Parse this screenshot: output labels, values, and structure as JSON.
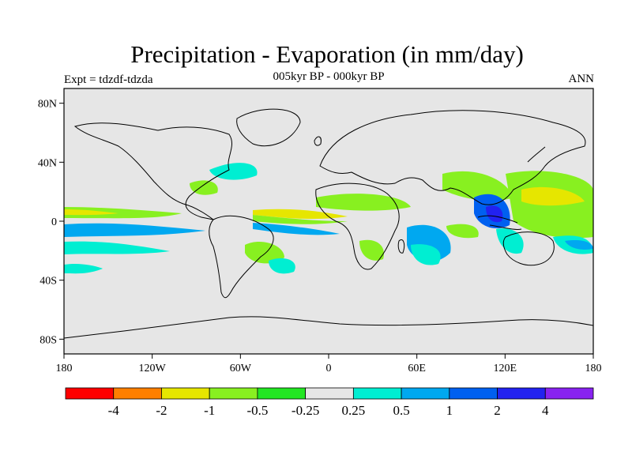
{
  "title": "Precipitation - Evaporation (in mm/day)",
  "subtitle": "005kyr BP - 000kyr BP",
  "experiment": "Expt = tdzdf-tdzda",
  "season": "ANN",
  "lat_labels": [
    "80N",
    "40N",
    "0",
    "40S",
    "80S"
  ],
  "lon_labels": [
    "180",
    "120W",
    "60W",
    "0",
    "60E",
    "120E",
    "180"
  ],
  "colorbar": {
    "colors": [
      "#ff0000",
      "#ff7f00",
      "#e6e600",
      "#88f020",
      "#22e622",
      "#e6e6e6",
      "#00eed2",
      "#00a8f0",
      "#0060f0",
      "#2222f0",
      "#8822f0"
    ],
    "labels": [
      "-4",
      "-2",
      "-1",
      "-0.5",
      "-0.25",
      "0.25",
      "0.5",
      "1",
      "2",
      "4"
    ]
  },
  "colors": {
    "ocean": "#e6e6e6",
    "frame": "#000000"
  }
}
